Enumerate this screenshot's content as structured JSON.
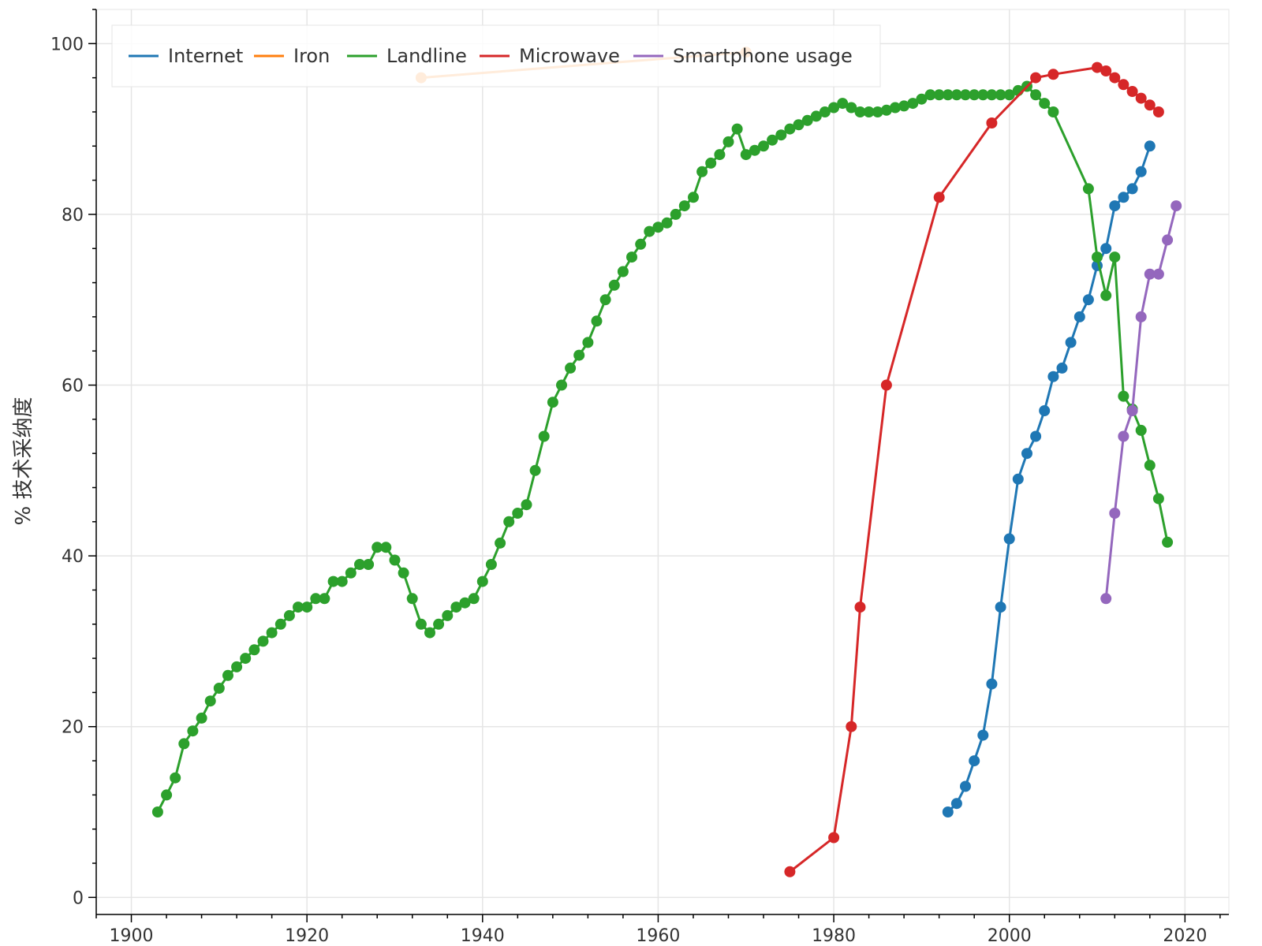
{
  "chart_data": {
    "type": "line",
    "title": "",
    "xlabel": "",
    "ylabel": "% 技术采纳度",
    "xlim": [
      1896,
      2025
    ],
    "ylim": [
      -2,
      104
    ],
    "xticks": [
      1900,
      1920,
      1940,
      1960,
      1980,
      2000,
      2020
    ],
    "yticks": [
      0,
      20,
      40,
      60,
      80,
      100
    ],
    "grid": true,
    "legend_position": "top-left",
    "series": [
      {
        "name": "Internet",
        "color": "#1f77b4",
        "x": [
          1993,
          1994,
          1995,
          1996,
          1997,
          1998,
          1999,
          2000,
          2001,
          2002,
          2003,
          2004,
          2005,
          2006,
          2007,
          2008,
          2009,
          2010,
          2011,
          2012,
          2013,
          2014,
          2015,
          2016
        ],
        "y": [
          10,
          11,
          13,
          16,
          19,
          25,
          34,
          42,
          49,
          52,
          54,
          57,
          61,
          62,
          65,
          68,
          70,
          74,
          76,
          81,
          82,
          83,
          85,
          88
        ]
      },
      {
        "name": "Iron",
        "color": "#ff7f0e",
        "x": [
          1933,
          1970
        ],
        "y": [
          96,
          99
        ]
      },
      {
        "name": "Landline",
        "color": "#2ca02c",
        "x": [
          1903,
          1904,
          1905,
          1906,
          1907,
          1908,
          1909,
          1910,
          1911,
          1912,
          1913,
          1914,
          1915,
          1916,
          1917,
          1918,
          1919,
          1920,
          1921,
          1922,
          1923,
          1924,
          1925,
          1926,
          1927,
          1928,
          1929,
          1930,
          1931,
          1932,
          1933,
          1934,
          1935,
          1936,
          1937,
          1938,
          1939,
          1940,
          1941,
          1942,
          1943,
          1944,
          1945,
          1946,
          1947,
          1948,
          1949,
          1950,
          1951,
          1952,
          1953,
          1954,
          1955,
          1956,
          1957,
          1958,
          1959,
          1960,
          1961,
          1962,
          1963,
          1964,
          1965,
          1966,
          1967,
          1968,
          1969,
          1970,
          1971,
          1972,
          1973,
          1974,
          1975,
          1976,
          1977,
          1978,
          1979,
          1980,
          1981,
          1982,
          1983,
          1984,
          1985,
          1986,
          1987,
          1988,
          1989,
          1990,
          1991,
          1992,
          1993,
          1994,
          1995,
          1996,
          1997,
          1998,
          1999,
          2000,
          2001,
          2002,
          2003,
          2004,
          2005,
          2009,
          2010,
          2011,
          2012,
          2013,
          2014,
          2015,
          2016,
          2017,
          2018
        ],
        "y": [
          10,
          12,
          14,
          18,
          19.5,
          21,
          23,
          24.5,
          26,
          27,
          28,
          29,
          30,
          31,
          32,
          33,
          34,
          34,
          35,
          35,
          37,
          37,
          38,
          39,
          39,
          41,
          41,
          39.5,
          38,
          35,
          32,
          31,
          32,
          33,
          34,
          34.5,
          35,
          37,
          39,
          41.5,
          44,
          45,
          46,
          50,
          54,
          58,
          60,
          62,
          63.5,
          65,
          67.5,
          70,
          71.7,
          73.3,
          75,
          76.5,
          78,
          78.5,
          79,
          80,
          81,
          82,
          85,
          86,
          87,
          88.5,
          90,
          87,
          87.5,
          88,
          88.7,
          89.3,
          90,
          90.5,
          91,
          91.5,
          92,
          92.5,
          93,
          92.5,
          92,
          92,
          92,
          92.2,
          92.5,
          92.7,
          93,
          93.5,
          94,
          94,
          94,
          94,
          94,
          94,
          94,
          94,
          94,
          94,
          94.5,
          95,
          94,
          93,
          92,
          83,
          75,
          70.5,
          75,
          58.7,
          57.2,
          54.7,
          50.6,
          46.7,
          41.6
        ]
      },
      {
        "name": "Microwave",
        "color": "#d62728",
        "x": [
          1975,
          1980,
          1982,
          1983,
          1986,
          1992,
          1998,
          2003,
          2005,
          2010,
          2011,
          2012,
          2013,
          2014,
          2015,
          2016,
          2017
        ],
        "y": [
          3,
          7,
          20,
          34,
          60,
          82,
          90.7,
          96,
          96.4,
          97.2,
          96.8,
          96,
          95.2,
          94.4,
          93.6,
          92.8,
          92
        ]
      },
      {
        "name": "Smartphone usage",
        "color": "#9467bd",
        "x": [
          2011,
          2012,
          2013,
          2014,
          2015,
          2016,
          2017,
          2018,
          2019
        ],
        "y": [
          35,
          45,
          54,
          57,
          68,
          73,
          73,
          77,
          81
        ]
      }
    ]
  }
}
